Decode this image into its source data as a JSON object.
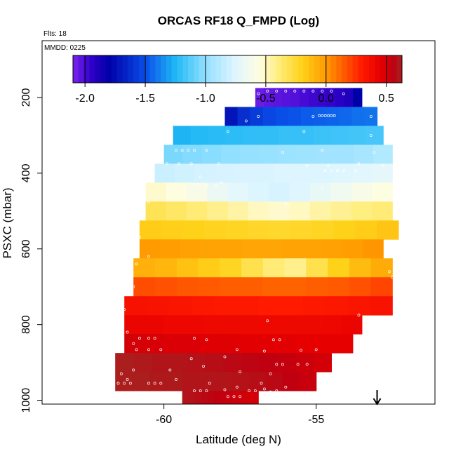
{
  "chart_data": {
    "type": "heatmap",
    "title": "ORCAS RF18 Q_FMPD (Log)",
    "flights_label": "Flts: 18",
    "date_label": "MMDD: 0225",
    "xlabel": "Latitude (deg N)",
    "ylabel": "PSXC (mbar)",
    "xlim": [
      -64,
      -51.1
    ],
    "ylim": [
      1010,
      50
    ],
    "x_ticks": [
      {
        "value": -60,
        "label": "-60"
      },
      {
        "value": -55,
        "label": "-55"
      }
    ],
    "y_ticks": [
      {
        "value": 200,
        "label": "200"
      },
      {
        "value": 400,
        "label": "400"
      },
      {
        "value": 600,
        "label": "600"
      },
      {
        "value": 800,
        "label": "800"
      },
      {
        "value": 1000,
        "label": "1000"
      }
    ],
    "colorbar": {
      "range": [
        -2.1,
        0.63
      ],
      "ticks": [
        {
          "value": -2.0,
          "label": "-2.0"
        },
        {
          "value": -1.5,
          "label": "-1.5"
        },
        {
          "value": -1.0,
          "label": "-1.0"
        },
        {
          "value": -0.5,
          "label": "-0.5"
        },
        {
          "value": 0.0,
          "label": "0.0"
        },
        {
          "value": 0.5,
          "label": "0.5"
        }
      ],
      "stops": [
        {
          "value": -2.1,
          "color": "#7a22ee"
        },
        {
          "value": -1.95,
          "color": "#2f00c8"
        },
        {
          "value": -1.8,
          "color": "#0000a8"
        },
        {
          "value": -1.5,
          "color": "#0a4ee8"
        },
        {
          "value": -1.25,
          "color": "#1fb8f5"
        },
        {
          "value": -1.0,
          "color": "#92e0ff"
        },
        {
          "value": -0.75,
          "color": "#e0f6ff"
        },
        {
          "value": -0.55,
          "color": "#fffde0"
        },
        {
          "value": -0.4,
          "color": "#ffee80"
        },
        {
          "value": -0.2,
          "color": "#ffd21a"
        },
        {
          "value": 0.0,
          "color": "#ff9a00"
        },
        {
          "value": 0.15,
          "color": "#ff5a00"
        },
        {
          "value": 0.3,
          "color": "#ff1a00"
        },
        {
          "value": 0.45,
          "color": "#e60000"
        },
        {
          "value": 0.55,
          "color": "#c00010"
        },
        {
          "value": 0.63,
          "color": "#a82220"
        }
      ]
    },
    "rows": [
      {
        "p_top": 175,
        "p_bottom": 225,
        "lat_min": -57.0,
        "lat_max": -53.5,
        "values": [
          -2.07,
          -2.05,
          -2.04,
          -2.03,
          -2.02,
          -2.0,
          -1.98,
          -1.97,
          -1.96,
          -1.93,
          -1.9,
          -1.8
        ]
      },
      {
        "p_top": 225,
        "p_bottom": 275,
        "lat_min": -58.0,
        "lat_max": -53.0,
        "values": [
          -1.72,
          -1.62,
          -1.57,
          -1.53,
          -1.5,
          -1.49,
          -1.47,
          -1.46,
          -1.45,
          -1.44,
          -1.42,
          -1.41
        ]
      },
      {
        "p_top": 275,
        "p_bottom": 325,
        "lat_min": -59.7,
        "lat_max": -52.8,
        "values": [
          -1.26,
          -1.24,
          -1.23,
          -1.22,
          -1.21,
          -1.21,
          -1.2,
          -1.2,
          -1.19,
          -1.18,
          -1.17,
          -1.16
        ]
      },
      {
        "p_top": 325,
        "p_bottom": 375,
        "lat_min": -60.0,
        "lat_max": -52.5,
        "values": [
          -1.05,
          -1.03,
          -1.02,
          -1.0,
          -0.99,
          -0.98,
          -0.97,
          -0.96,
          -0.95,
          -0.95,
          -0.93,
          -0.9
        ]
      },
      {
        "p_top": 375,
        "p_bottom": 425,
        "lat_min": -60.3,
        "lat_max": -52.5,
        "values": [
          -0.82,
          -0.8,
          -0.79,
          -0.78,
          -0.77,
          -0.77,
          -0.76,
          -0.76,
          -0.76,
          -0.75,
          -0.74,
          -0.72
        ]
      },
      {
        "p_top": 425,
        "p_bottom": 475,
        "lat_min": -60.6,
        "lat_max": -52.5,
        "values": [
          -0.52,
          -0.55,
          -0.6,
          -0.68,
          -0.73,
          -0.76,
          -0.78,
          -0.75,
          -0.7,
          -0.65,
          -0.6,
          -0.56
        ]
      },
      {
        "p_top": 475,
        "p_bottom": 525,
        "lat_min": -60.6,
        "lat_max": -52.5,
        "values": [
          -0.32,
          -0.35,
          -0.38,
          -0.42,
          -0.46,
          -0.5,
          -0.52,
          -0.5,
          -0.46,
          -0.43,
          -0.4,
          -0.38
        ]
      },
      {
        "p_top": 525,
        "p_bottom": 575,
        "lat_min": -60.8,
        "lat_max": -52.3,
        "values": [
          -0.18,
          -0.19,
          -0.2,
          -0.21,
          -0.22,
          -0.23,
          -0.24,
          -0.23,
          -0.22,
          -0.2,
          -0.18,
          -0.15
        ]
      },
      {
        "p_top": 575,
        "p_bottom": 625,
        "lat_min": -60.8,
        "lat_max": -52.8,
        "values": [
          0.0,
          -0.01,
          -0.02,
          -0.03,
          -0.03,
          -0.04,
          -0.04,
          -0.03,
          -0.03,
          -0.02,
          -0.01,
          0.01
        ]
      },
      {
        "p_top": 625,
        "p_bottom": 675,
        "lat_min": -61.0,
        "lat_max": -52.5,
        "values": [
          -0.08,
          -0.1,
          -0.14,
          -0.18,
          -0.22,
          -0.3,
          -0.38,
          -0.42,
          -0.3,
          -0.2,
          -0.12,
          -0.06
        ]
      },
      {
        "p_top": 675,
        "p_bottom": 725,
        "lat_min": -61.0,
        "lat_max": -52.5,
        "values": [
          0.18,
          0.17,
          0.16,
          0.15,
          0.14,
          0.14,
          0.13,
          0.13,
          0.14,
          0.15,
          0.17,
          0.2
        ]
      },
      {
        "p_top": 725,
        "p_bottom": 775,
        "lat_min": -61.3,
        "lat_max": -52.5,
        "values": [
          0.35,
          0.34,
          0.33,
          0.32,
          0.31,
          0.31,
          0.3,
          0.3,
          0.31,
          0.32,
          0.33,
          0.34
        ]
      },
      {
        "p_top": 775,
        "p_bottom": 825,
        "lat_min": -61.3,
        "lat_max": -53.5,
        "values": [
          0.42,
          0.42,
          0.41,
          0.41,
          0.4,
          0.4,
          0.4,
          0.4,
          0.4,
          0.4,
          0.41,
          0.42
        ]
      },
      {
        "p_top": 825,
        "p_bottom": 875,
        "lat_min": -61.3,
        "lat_max": -53.8,
        "values": [
          0.5,
          0.49,
          0.48,
          0.48,
          0.47,
          0.47,
          0.46,
          0.46,
          0.46,
          0.45,
          0.45,
          0.45
        ]
      },
      {
        "p_top": 875,
        "p_bottom": 925,
        "lat_min": -61.6,
        "lat_max": -54.5,
        "values": [
          0.62,
          0.61,
          0.6,
          0.6,
          0.59,
          0.58,
          0.57,
          0.56,
          0.55,
          0.54,
          0.52,
          0.5
        ]
      },
      {
        "p_top": 925,
        "p_bottom": 975,
        "lat_min": -61.6,
        "lat_max": -55.0,
        "values": [
          0.62,
          0.62,
          0.61,
          0.61,
          0.6,
          0.6,
          0.6,
          0.59,
          0.58,
          0.57,
          0.55,
          0.53
        ]
      },
      {
        "p_top": 975,
        "p_bottom": 1010,
        "lat_min": -59.4,
        "lat_max": -56.9,
        "values": [
          0.6,
          0.59,
          0.58,
          0.57,
          0.56,
          0.55,
          0.54,
          0.53,
          0.52,
          0.51,
          0.5,
          0.5
        ]
      }
    ],
    "samples": [
      {
        "lat": -56.9,
        "p": 190
      },
      {
        "lat": -56.6,
        "p": 183
      },
      {
        "lat": -56.3,
        "p": 183
      },
      {
        "lat": -56.0,
        "p": 183
      },
      {
        "lat": -55.7,
        "p": 183
      },
      {
        "lat": -55.4,
        "p": 183
      },
      {
        "lat": -55.1,
        "p": 183
      },
      {
        "lat": -54.8,
        "p": 183
      },
      {
        "lat": -54.5,
        "p": 183
      },
      {
        "lat": -54.1,
        "p": 190
      },
      {
        "lat": -57.3,
        "p": 262
      },
      {
        "lat": -56.9,
        "p": 250
      },
      {
        "lat": -55.1,
        "p": 250
      },
      {
        "lat": -54.9,
        "p": 248
      },
      {
        "lat": -54.8,
        "p": 248
      },
      {
        "lat": -54.7,
        "p": 248
      },
      {
        "lat": -54.6,
        "p": 248
      },
      {
        "lat": -54.5,
        "p": 248
      },
      {
        "lat": -54.4,
        "p": 248
      },
      {
        "lat": -53.2,
        "p": 250
      },
      {
        "lat": -57.9,
        "p": 290
      },
      {
        "lat": -55.4,
        "p": 290
      },
      {
        "lat": -53.2,
        "p": 300
      },
      {
        "lat": -59.6,
        "p": 340
      },
      {
        "lat": -59.4,
        "p": 340
      },
      {
        "lat": -59.2,
        "p": 340
      },
      {
        "lat": -59.0,
        "p": 340
      },
      {
        "lat": -58.6,
        "p": 340
      },
      {
        "lat": -56.1,
        "p": 345
      },
      {
        "lat": -54.8,
        "p": 340
      },
      {
        "lat": -53.1,
        "p": 345
      },
      {
        "lat": -59.9,
        "p": 375
      },
      {
        "lat": -59.5,
        "p": 375
      },
      {
        "lat": -59.1,
        "p": 375
      },
      {
        "lat": -58.2,
        "p": 375
      },
      {
        "lat": -55.3,
        "p": 380
      },
      {
        "lat": -54.6,
        "p": 380
      },
      {
        "lat": -53.6,
        "p": 375
      },
      {
        "lat": -52.8,
        "p": 380
      },
      {
        "lat": -58.8,
        "p": 410
      },
      {
        "lat": -54.7,
        "p": 393
      },
      {
        "lat": -54.5,
        "p": 393
      },
      {
        "lat": -54.3,
        "p": 393
      },
      {
        "lat": -54.1,
        "p": 393
      },
      {
        "lat": -53.7,
        "p": 393
      },
      {
        "lat": -58.9,
        "p": 430
      },
      {
        "lat": -58.6,
        "p": 433
      },
      {
        "lat": -58.3,
        "p": 433
      },
      {
        "lat": -58.1,
        "p": 425
      },
      {
        "lat": -54.8,
        "p": 440
      },
      {
        "lat": -60.5,
        "p": 475
      },
      {
        "lat": -56.0,
        "p": 480
      },
      {
        "lat": -53.4,
        "p": 470
      },
      {
        "lat": -52.6,
        "p": 470
      },
      {
        "lat": -52.4,
        "p": 490
      },
      {
        "lat": -60.7,
        "p": 500
      },
      {
        "lat": -52.2,
        "p": 530
      },
      {
        "lat": -52.1,
        "p": 545
      },
      {
        "lat": -60.8,
        "p": 570
      },
      {
        "lat": -52.6,
        "p": 580
      },
      {
        "lat": -60.5,
        "p": 620
      },
      {
        "lat": -60.9,
        "p": 640
      },
      {
        "lat": -52.6,
        "p": 660
      },
      {
        "lat": -52.5,
        "p": 675
      },
      {
        "lat": -61.0,
        "p": 700
      },
      {
        "lat": -52.4,
        "p": 690
      },
      {
        "lat": -61.3,
        "p": 760
      },
      {
        "lat": -56.6,
        "p": 790
      },
      {
        "lat": -53.6,
        "p": 775
      },
      {
        "lat": -61.2,
        "p": 820
      },
      {
        "lat": -60.8,
        "p": 836
      },
      {
        "lat": -60.5,
        "p": 836
      },
      {
        "lat": -60.3,
        "p": 836
      },
      {
        "lat": -59.0,
        "p": 836
      },
      {
        "lat": -58.6,
        "p": 840
      },
      {
        "lat": -56.4,
        "p": 840
      },
      {
        "lat": -56.2,
        "p": 840
      },
      {
        "lat": -61.0,
        "p": 850
      },
      {
        "lat": -60.9,
        "p": 866
      },
      {
        "lat": -60.5,
        "p": 866
      },
      {
        "lat": -60.1,
        "p": 866
      },
      {
        "lat": -57.6,
        "p": 866
      },
      {
        "lat": -56.7,
        "p": 870
      },
      {
        "lat": -55.5,
        "p": 868
      },
      {
        "lat": -55.0,
        "p": 866
      },
      {
        "lat": -59.1,
        "p": 890
      },
      {
        "lat": -58.0,
        "p": 885
      },
      {
        "lat": -58.7,
        "p": 910
      },
      {
        "lat": -56.3,
        "p": 905
      },
      {
        "lat": -56.1,
        "p": 905
      },
      {
        "lat": -55.6,
        "p": 905
      },
      {
        "lat": -55.3,
        "p": 905
      },
      {
        "lat": -61.4,
        "p": 930
      },
      {
        "lat": -61.0,
        "p": 920
      },
      {
        "lat": -59.8,
        "p": 920
      },
      {
        "lat": -57.5,
        "p": 925
      },
      {
        "lat": -56.5,
        "p": 930
      },
      {
        "lat": -61.2,
        "p": 945
      },
      {
        "lat": -59.6,
        "p": 945
      },
      {
        "lat": -61.5,
        "p": 955
      },
      {
        "lat": -61.3,
        "p": 955
      },
      {
        "lat": -61.1,
        "p": 955
      },
      {
        "lat": -60.5,
        "p": 955
      },
      {
        "lat": -60.3,
        "p": 955
      },
      {
        "lat": -60.1,
        "p": 955
      },
      {
        "lat": -58.5,
        "p": 955
      },
      {
        "lat": -56.8,
        "p": 955
      },
      {
        "lat": -59.0,
        "p": 975
      },
      {
        "lat": -58.8,
        "p": 975
      },
      {
        "lat": -58.6,
        "p": 975
      },
      {
        "lat": -58.0,
        "p": 972
      },
      {
        "lat": -57.6,
        "p": 965
      },
      {
        "lat": -57.2,
        "p": 975
      },
      {
        "lat": -57.0,
        "p": 975
      },
      {
        "lat": -56.7,
        "p": 970
      },
      {
        "lat": -56.5,
        "p": 978
      },
      {
        "lat": -56.3,
        "p": 975
      },
      {
        "lat": -56.0,
        "p": 965
      },
      {
        "lat": -57.9,
        "p": 990
      },
      {
        "lat": -57.7,
        "p": 990
      },
      {
        "lat": -57.5,
        "p": 990
      },
      {
        "lat": -56.1,
        "p": 990
      }
    ],
    "marker": {
      "type": "arrow-down",
      "lat": -53.0
    }
  }
}
